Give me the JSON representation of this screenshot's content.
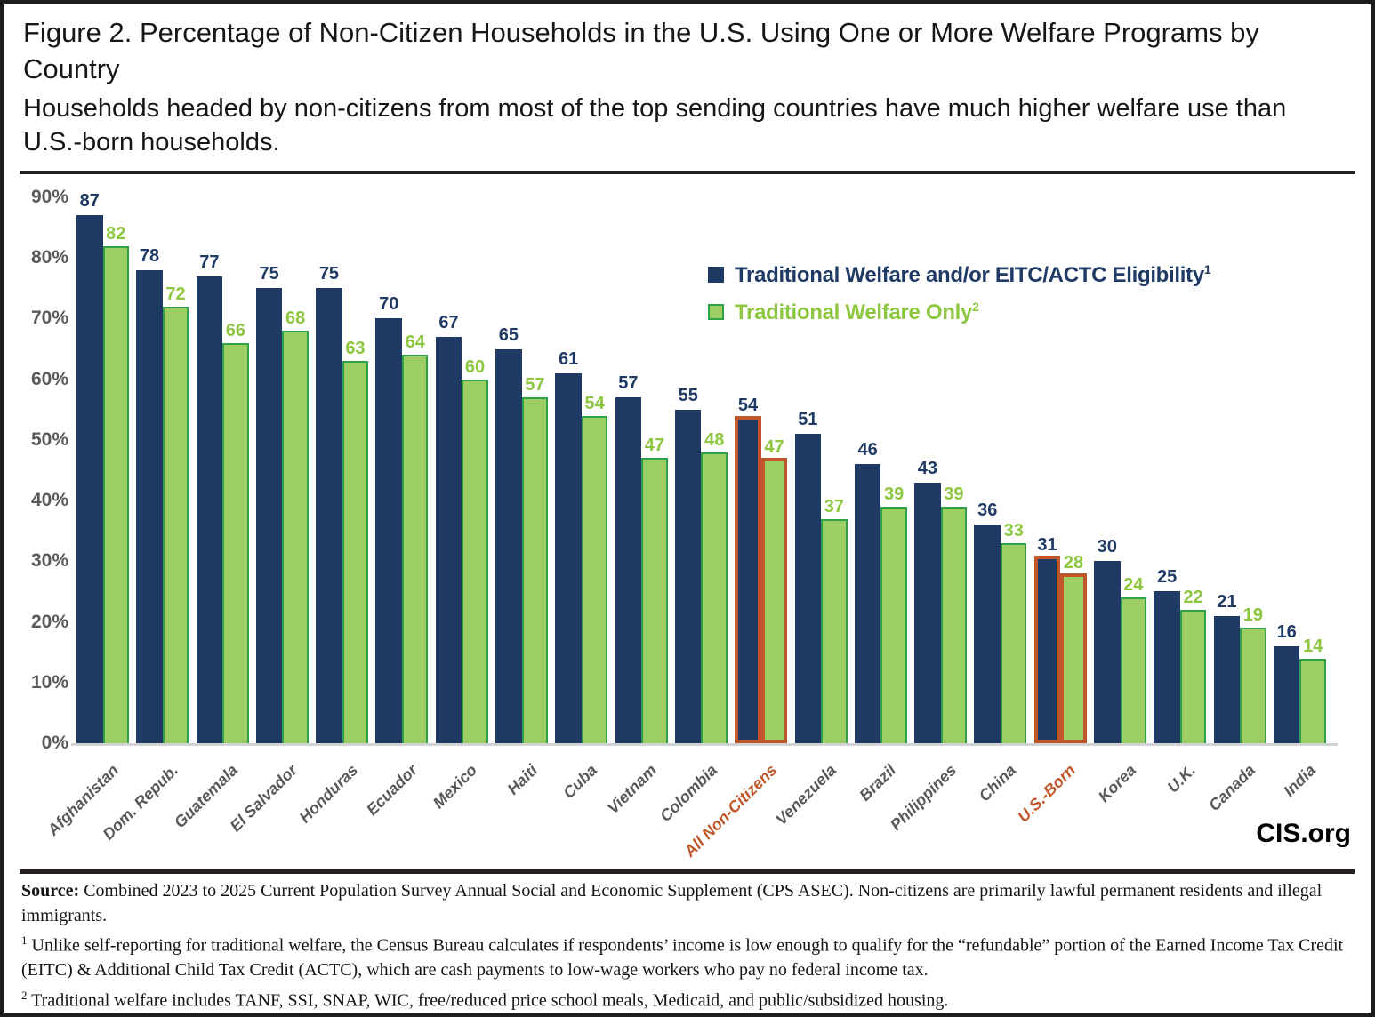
{
  "header": {
    "title": "Figure 2. Percentage of Non-Citizen Households in the U.S. Using One or More Welfare Programs by Country",
    "subtitle": "Households headed by non-citizens from most of the top sending countries have much higher welfare use than U.S.-born households."
  },
  "chart_data": {
    "type": "bar",
    "categories": [
      "Afghanistan",
      "Dom. Repub.",
      "Guatemala",
      "El Salvador",
      "Honduras",
      "Ecuador",
      "Mexico",
      "Haiti",
      "Cuba",
      "Vietnam",
      "Colombia",
      "All Non-Citizens",
      "Venezuela",
      "Brazil",
      "Philippines",
      "China",
      "U.S.-Born",
      "Korea",
      "U.K.",
      "Canada",
      "India"
    ],
    "series": [
      {
        "name": "Traditional Welfare and/or EITC/ACTC Eligibility",
        "footnote_marker": "1",
        "color": "#1F3A64",
        "values": [
          87,
          78,
          77,
          75,
          75,
          70,
          67,
          65,
          61,
          57,
          55,
          54,
          51,
          46,
          43,
          36,
          31,
          30,
          25,
          21,
          16
        ]
      },
      {
        "name": "Traditional Welfare Only",
        "footnote_marker": "2",
        "color": "#9BCE63",
        "border_color": "#2FA148",
        "values": [
          82,
          72,
          66,
          68,
          63,
          64,
          60,
          57,
          54,
          47,
          48,
          47,
          37,
          39,
          39,
          33,
          28,
          24,
          22,
          19,
          14
        ]
      }
    ],
    "highlighted_categories": [
      "All Non-Citizens",
      "U.S.-Born"
    ],
    "highlight_color": "#C0572B",
    "yticks": [
      "0%",
      "10%",
      "20%",
      "30%",
      "40%",
      "50%",
      "60%",
      "70%",
      "80%",
      "90%"
    ],
    "ylim": [
      0,
      90
    ],
    "xlabel": "",
    "ylabel": "",
    "grid": false,
    "legend_position": "upper right",
    "value_labels": true
  },
  "footer": {
    "brand": "CIS.org",
    "source_label": "Source:",
    "source_text": " Combined 2023 to 2025 Current Population Survey Annual Social and Economic Supplement (CPS ASEC). Non-citizens are primarily lawful permanent residents and illegal immigrants.",
    "footnote1_marker": "1",
    "footnote1_text": " Unlike self-reporting for traditional welfare, the Census Bureau calculates if respondents’ income is low enough to qualify for the “refundable” portion of the Earned Income Tax Credit (EITC) & Additional Child Tax Credit (ACTC), which are cash payments to low-wage workers who pay no federal income tax.",
    "footnote2_marker": "2",
    "footnote2_text": " Traditional welfare includes TANF, SSI, SNAP, WIC, free/reduced price school meals, Medicaid, and public/subsidized housing."
  }
}
